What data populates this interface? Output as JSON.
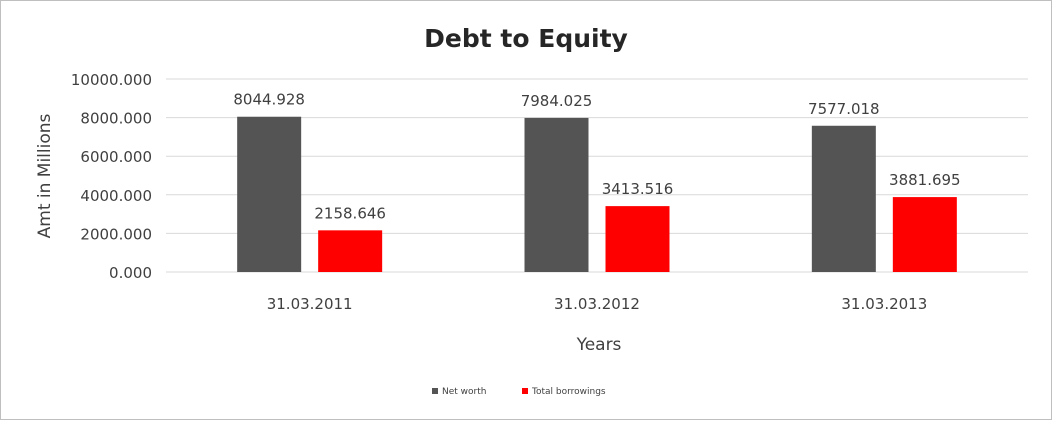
{
  "chart_data": {
    "type": "bar",
    "title": "Debt to Equity",
    "xlabel": "Years",
    "ylabel": "Amt in Millions",
    "categories": [
      "31.03.2011",
      "31.03.2012",
      "31.03.2013"
    ],
    "series": [
      {
        "name": "Net worth",
        "color": "#545454",
        "values": [
          8044.928,
          7984.025,
          7577.018
        ],
        "labels": [
          "8044.928",
          "7984.025",
          "7577.018"
        ]
      },
      {
        "name": "Total borrowings",
        "color": "#ff0000",
        "values": [
          2158.646,
          3413.516,
          3881.695
        ],
        "labels": [
          "2158.646",
          "3413.516",
          "3881.695"
        ]
      }
    ],
    "ylim": [
      0,
      10000
    ],
    "yticks": [
      0,
      2000,
      4000,
      6000,
      8000,
      10000
    ],
    "ytick_labels": [
      "0.000",
      "2000.000",
      "4000.000",
      "6000.000",
      "8000.000",
      "10000.000"
    ],
    "grid": true,
    "legend_position": "bottom",
    "colors": {
      "axis_text": "#404040",
      "gridline": "#d9d9d9",
      "title_text": "#262626"
    }
  }
}
